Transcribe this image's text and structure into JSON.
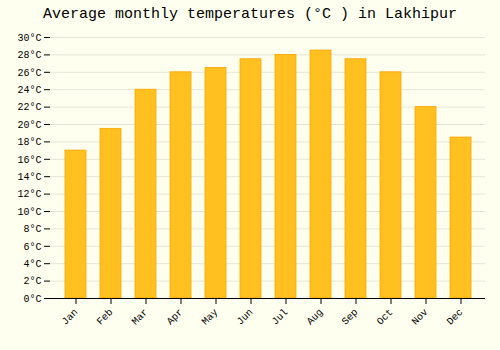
{
  "chart_data": {
    "type": "bar",
    "title": "Average monthly temperatures (°C ) in Lakhipur",
    "categories": [
      "Jan",
      "Feb",
      "Mar",
      "Apr",
      "May",
      "Jun",
      "Jul",
      "Aug",
      "Sep",
      "Oct",
      "Nov",
      "Dec"
    ],
    "values": [
      17,
      19.5,
      24,
      26,
      26.5,
      27.5,
      28,
      28.5,
      27.5,
      26,
      22,
      18.5
    ],
    "color": "#FFC020",
    "ylim": [
      0,
      30
    ],
    "yticks": [
      {
        "value": 0,
        "label": "0°C"
      },
      {
        "value": 2,
        "label": "2°C"
      },
      {
        "value": 4,
        "label": "4°C"
      },
      {
        "value": 6,
        "label": "6°C"
      },
      {
        "value": 8,
        "label": "8°C"
      },
      {
        "value": 10,
        "label": "10°C"
      },
      {
        "value": 12,
        "label": "12°C"
      },
      {
        "value": 14,
        "label": "14°C"
      },
      {
        "value": 16,
        "label": "16°C"
      },
      {
        "value": 18,
        "label": "18°C"
      },
      {
        "value": 20,
        "label": "20°C"
      },
      {
        "value": 22,
        "label": "22°C"
      },
      {
        "value": 24,
        "label": "24°C"
      },
      {
        "value": 26,
        "label": "26°C"
      },
      {
        "value": 28,
        "label": "28°C"
      },
      {
        "value": 30,
        "label": "30°C"
      }
    ],
    "grid": true
  }
}
